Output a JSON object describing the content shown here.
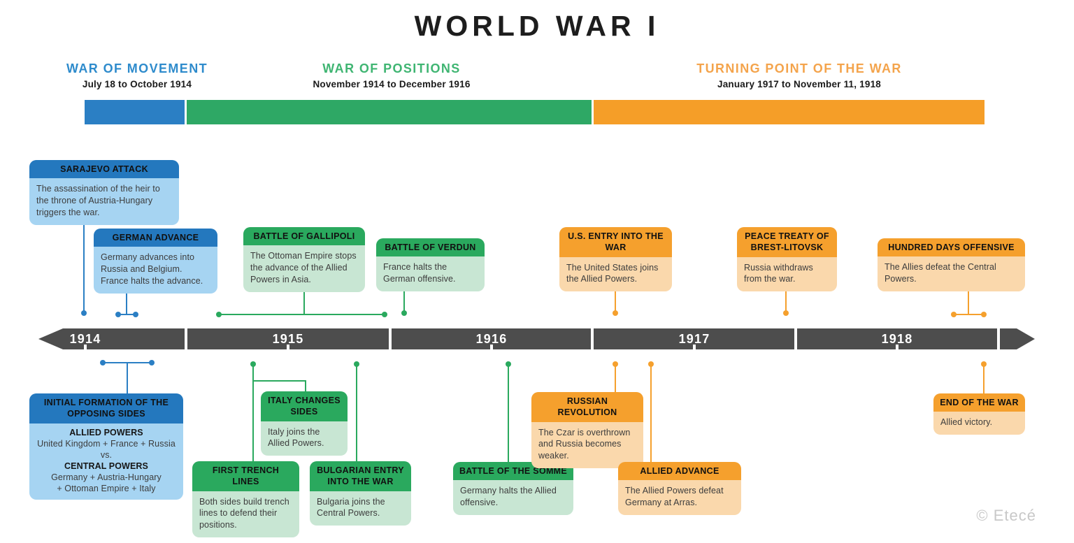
{
  "title": "WORLD WAR I",
  "watermark": "© Etecé",
  "phases": [
    {
      "id": "war-of-movement",
      "label": "WAR OF MOVEMENT",
      "dates": "July 18 to October 1914",
      "color": "blue"
    },
    {
      "id": "war-of-positions",
      "label": "WAR OF POSITIONS",
      "dates": "November 1914 to December 1916",
      "color": "green"
    },
    {
      "id": "turning-point-of-the-war",
      "label": "TURNING POINT OF THE WAR",
      "dates": "January 1917 to November 11, 1918",
      "color": "orange"
    }
  ],
  "timeline": {
    "years": [
      "1914",
      "1915",
      "1916",
      "1917",
      "1918"
    ]
  },
  "colors": {
    "blue": {
      "header": "#2478BE",
      "body": "#A6D4F2",
      "bar": "#2B7FC4",
      "label": "#2E8BCC",
      "line": "#2B7FC4"
    },
    "green": {
      "header": "#2AA95E",
      "body": "#C8E6D3",
      "bar": "#2EA865",
      "label": "#3FB572",
      "line": "#2AA95E"
    },
    "orange": {
      "header": "#F5A02D",
      "body": "#FAD8AC",
      "bar": "#F59E28",
      "label": "#F4A44C",
      "line": "#F5A02D"
    },
    "timeline_bar": "#4D4D4D",
    "header_text": "#111111",
    "body_text": "#3C3C3C",
    "watermark": "#C8C8C8"
  },
  "events": [
    {
      "id": "sarajevo-attack",
      "color": "blue",
      "title": "SARAJEVO ATTACK",
      "body": "The assassination of the heir to the throne of Austria-Hungary triggers the war."
    },
    {
      "id": "german-advance",
      "color": "blue",
      "title": "GERMAN ADVANCE",
      "body": "Germany advances into Russia and Belgium. France halts the advance."
    },
    {
      "id": "battle-of-gallipoli",
      "color": "green",
      "title": "BATTLE OF GALLIPOLI",
      "body": "The Ottoman Empire stops the advance of the Allied Powers in Asia."
    },
    {
      "id": "battle-of-verdun",
      "color": "green",
      "title": "BATTLE OF VERDUN",
      "body": "France halts the German offensive."
    },
    {
      "id": "us-entry-into-the-war",
      "color": "orange",
      "title": "U.S. ENTRY INTO THE WAR",
      "body": "The United States joins the Allied Powers."
    },
    {
      "id": "peace-treaty-of-brest-litovsk",
      "color": "orange",
      "title": "PEACE TREATY OF BREST-LITOVSK",
      "body": "Russia withdraws from the war."
    },
    {
      "id": "hundred-days-offensive",
      "color": "orange",
      "title": "HUNDRED DAYS OFFENSIVE",
      "body": "The Allies defeat the Central Powers."
    },
    {
      "id": "initial-formation",
      "color": "blue",
      "title": "INITIAL FORMATION OF THE OPPOSING SIDES",
      "body_lines": [
        {
          "text": "ALLIED POWERS",
          "bold": true
        },
        {
          "text": "United Kingdom + France + Russia",
          "bold": false
        },
        {
          "text": "vs.",
          "bold": false
        },
        {
          "text": "CENTRAL POWERS",
          "bold": true
        },
        {
          "text": "Germany + Austria-Hungary",
          "bold": false
        },
        {
          "text": "+ Ottoman Empire + Italy",
          "bold": false
        }
      ]
    },
    {
      "id": "italy-changes-sides",
      "color": "green",
      "title": "ITALY CHANGES SIDES",
      "body": "Italy joins the Allied Powers."
    },
    {
      "id": "first-trench-lines",
      "color": "green",
      "title": "FIRST TRENCH LINES",
      "body": "Both sides build trench lines to defend their positions."
    },
    {
      "id": "bulgarian-entry-into-the-war",
      "color": "green",
      "title": "BULGARIAN ENTRY INTO THE WAR",
      "body": "Bulgaria joins the Central Powers."
    },
    {
      "id": "battle-of-the-somme",
      "color": "green",
      "title": "BATTLE OF THE SOMME",
      "body": "Germany halts the Allied offensive."
    },
    {
      "id": "russian-revolution",
      "color": "orange",
      "title": "RUSSIAN REVOLUTION",
      "body": "The Czar is overthrown and Russia becomes weaker."
    },
    {
      "id": "allied-advance",
      "color": "orange",
      "title": "ALLIED ADVANCE",
      "body": "The Allied Powers defeat Germany at Arras."
    },
    {
      "id": "end-of-the-war",
      "color": "orange",
      "title": "END OF THE WAR",
      "body": "Allied victory."
    }
  ]
}
